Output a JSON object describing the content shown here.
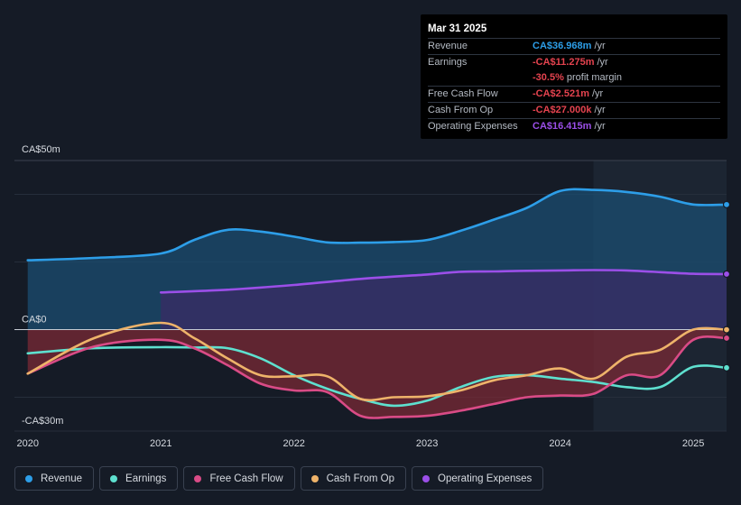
{
  "tooltip": {
    "date": "Mar 31 2025",
    "rows": [
      {
        "label": "Revenue",
        "value": "CA$36.968m",
        "unit": "/yr",
        "color": "#2d9ee8"
      },
      {
        "label": "Earnings",
        "value": "-CA$11.275m",
        "unit": "/yr",
        "color": "#e5434f"
      },
      {
        "label": "",
        "value": "-30.5%",
        "unit": "profit margin",
        "color": "#e5434f"
      },
      {
        "label": "Free Cash Flow",
        "value": "-CA$2.521m",
        "unit": "/yr",
        "color": "#e5434f"
      },
      {
        "label": "Cash From Op",
        "value": "-CA$27.000k",
        "unit": "/yr",
        "color": "#e5434f"
      },
      {
        "label": "Operating Expenses",
        "value": "CA$16.415m",
        "unit": "/yr",
        "color": "#9b4fe8"
      }
    ]
  },
  "legend": [
    {
      "label": "Revenue",
      "color": "#2d9ee8"
    },
    {
      "label": "Earnings",
      "color": "#5ee0cf"
    },
    {
      "label": "Free Cash Flow",
      "color": "#d94b86"
    },
    {
      "label": "Cash From Op",
      "color": "#eeb36a"
    },
    {
      "label": "Operating Expenses",
      "color": "#9b4fe8"
    }
  ],
  "chart_data": {
    "type": "area",
    "title": "",
    "xlabel": "",
    "ylabel": "",
    "y_unit": "CA$m",
    "ylim": [
      -30,
      50
    ],
    "xlim": [
      2019.9,
      2025.25
    ],
    "y_labels": [
      {
        "value": 50,
        "text": "CA$50m"
      },
      {
        "value": 0,
        "text": "CA$0"
      },
      {
        "value": -30,
        "text": "-CA$30m"
      }
    ],
    "y_grid": [
      50,
      40,
      20,
      0,
      -20,
      -30
    ],
    "x_ticks": [
      {
        "value": 2020,
        "text": "2020"
      },
      {
        "value": 2021,
        "text": "2021"
      },
      {
        "value": 2022,
        "text": "2022"
      },
      {
        "value": 2023,
        "text": "2023"
      },
      {
        "value": 2024,
        "text": "2024"
      },
      {
        "value": 2025,
        "text": "2025"
      }
    ],
    "forecast_start": 2024.25,
    "series": [
      {
        "name": "Revenue",
        "color": "#2d9ee8",
        "fill": "#1b4e72",
        "x": [
          2020.0,
          2020.5,
          2021.0,
          2021.25,
          2021.5,
          2021.75,
          2022.0,
          2022.25,
          2022.5,
          2022.75,
          2023.0,
          2023.25,
          2023.5,
          2023.75,
          2024.0,
          2024.25,
          2024.5,
          2024.75,
          2025.0,
          2025.25
        ],
        "values": [
          20.5,
          21.2,
          22.5,
          26.5,
          29.5,
          29.0,
          27.5,
          25.8,
          25.7,
          25.9,
          26.5,
          29.2,
          32.5,
          36.0,
          41.0,
          41.3,
          40.7,
          39.3,
          37.0,
          36.97
        ]
      },
      {
        "name": "Operating Expenses",
        "color": "#9b4fe8",
        "fill": "#3a2b66",
        "x": [
          2021.0,
          2021.5,
          2022.0,
          2022.5,
          2023.0,
          2023.25,
          2023.5,
          2023.75,
          2024.0,
          2024.25,
          2024.5,
          2024.75,
          2025.0,
          2025.25
        ],
        "values": [
          11.0,
          11.8,
          13.2,
          15.0,
          16.3,
          17.1,
          17.2,
          17.4,
          17.5,
          17.6,
          17.5,
          17.0,
          16.5,
          16.42
        ]
      },
      {
        "name": "Earnings",
        "color": "#5ee0cf",
        "fill": null,
        "x": [
          2020.0,
          2020.5,
          2021.0,
          2021.25,
          2021.5,
          2021.75,
          2022.0,
          2022.25,
          2022.5,
          2022.75,
          2023.0,
          2023.25,
          2023.5,
          2023.75,
          2024.0,
          2024.25,
          2024.5,
          2024.75,
          2025.0,
          2025.25
        ],
        "values": [
          -7.0,
          -5.5,
          -5.2,
          -5.3,
          -5.5,
          -8.5,
          -13.5,
          -17.5,
          -20.5,
          -22.5,
          -21.0,
          -17.0,
          -14.0,
          -13.5,
          -14.5,
          -15.5,
          -17.0,
          -17.0,
          -11.0,
          -11.28
        ]
      },
      {
        "name": "Free Cash Flow",
        "color": "#d94b86",
        "fill": "#7a2935",
        "x": [
          2020.0,
          2020.5,
          2021.0,
          2021.25,
          2021.5,
          2021.75,
          2022.0,
          2022.25,
          2022.5,
          2022.75,
          2023.0,
          2023.25,
          2023.5,
          2023.75,
          2024.0,
          2024.25,
          2024.5,
          2024.75,
          2025.0,
          2025.25
        ],
        "values": [
          -13.0,
          -5.0,
          -3.0,
          -5.5,
          -10.5,
          -16.0,
          -18.0,
          -18.5,
          -25.5,
          -25.8,
          -25.5,
          -24.0,
          -22.0,
          -20.0,
          -19.5,
          -19.0,
          -13.5,
          -13.5,
          -3.0,
          -2.52
        ]
      },
      {
        "name": "Cash From Op",
        "color": "#eeb36a",
        "fill": null,
        "x": [
          2020.0,
          2020.5,
          2021.0,
          2021.25,
          2021.5,
          2021.75,
          2022.0,
          2022.25,
          2022.5,
          2022.75,
          2023.0,
          2023.25,
          2023.5,
          2023.75,
          2024.0,
          2024.25,
          2024.5,
          2024.75,
          2025.0,
          2025.25
        ],
        "values": [
          -13.0,
          -2.5,
          2.0,
          -2.5,
          -8.5,
          -13.5,
          -13.8,
          -13.8,
          -20.5,
          -20.0,
          -19.7,
          -18.0,
          -15.0,
          -13.5,
          -11.5,
          -14.5,
          -8.0,
          -6.0,
          0.0,
          -0.03
        ]
      }
    ]
  }
}
